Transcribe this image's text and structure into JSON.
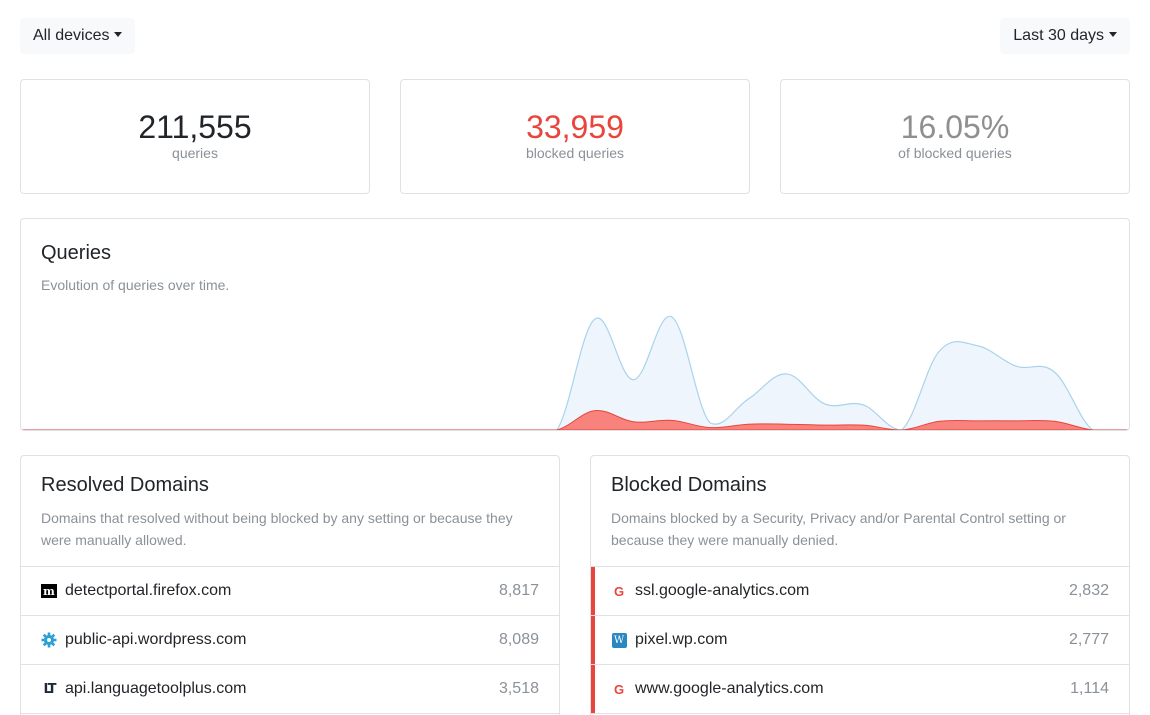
{
  "filters": {
    "device": "All devices",
    "range": "Last 30 days"
  },
  "stats": {
    "total": {
      "value": "211,555",
      "label": "queries"
    },
    "blocked": {
      "value": "33,959",
      "label": "blocked queries"
    },
    "percent": {
      "value": "16.05%",
      "label": "of blocked queries"
    }
  },
  "colors": {
    "accent_red": "#e8453c",
    "area_total_fill": "#eef5fc",
    "area_total_stroke": "#a9d3ec",
    "area_blocked_fill": "#f8837c"
  },
  "queries": {
    "title": "Queries",
    "subtitle": "Evolution of queries over time.",
    "chart_data": {
      "type": "area",
      "x": [
        1,
        2,
        3,
        4,
        5,
        6,
        7,
        8,
        9,
        10,
        11,
        12,
        13,
        14,
        15,
        16,
        17,
        18,
        19,
        20,
        21,
        22,
        23,
        24,
        25,
        26,
        27,
        28,
        29,
        30
      ],
      "series": [
        {
          "values": [
            0,
            0,
            0,
            0,
            0,
            0,
            0,
            0,
            0,
            0,
            0,
            0,
            0,
            0,
            0,
            11500,
            5200,
            11700,
            750,
            3200,
            5800,
            2700,
            2600,
            0,
            8200,
            8700,
            6600,
            6000,
            0,
            0
          ]
        },
        {
          "values": [
            0,
            0,
            0,
            0,
            0,
            0,
            0,
            0,
            0,
            0,
            0,
            0,
            0,
            0,
            0,
            2000,
            850,
            1000,
            250,
            600,
            600,
            500,
            500,
            0,
            900,
            950,
            950,
            900,
            0,
            0
          ]
        }
      ],
      "ylim": [
        0,
        12000
      ]
    }
  },
  "resolved": {
    "title": "Resolved Domains",
    "subtitle": "Domains that resolved without being blocked by any setting or because they were manually allowed.",
    "items": [
      {
        "domain": "detectportal.firefox.com",
        "count": "8,817",
        "icon": "m-icon",
        "glyph": "m"
      },
      {
        "domain": "public-api.wordpress.com",
        "count": "8,089",
        "icon": "gear-icon",
        "glyph": "⚙"
      },
      {
        "domain": "api.languagetoolplus.com",
        "count": "3,518",
        "icon": "lt-icon",
        "glyph": "LT"
      }
    ]
  },
  "blocked": {
    "title": "Blocked Domains",
    "subtitle": "Domains blocked by a Security, Privacy and/or Parental Control setting or because they were manually denied.",
    "items": [
      {
        "domain": "ssl.google-analytics.com",
        "count": "2,832",
        "icon": "google-icon",
        "glyph": "G"
      },
      {
        "domain": "pixel.wp.com",
        "count": "2,777",
        "icon": "wordpress-icon",
        "glyph": "W"
      },
      {
        "domain": "www.google-analytics.com",
        "count": "1,114",
        "icon": "google-icon",
        "glyph": "G"
      }
    ]
  }
}
